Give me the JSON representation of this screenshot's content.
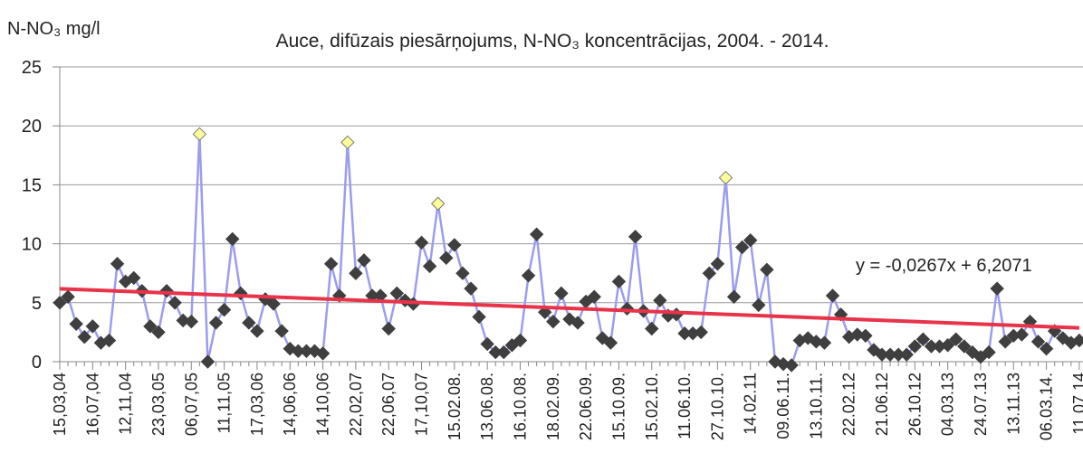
{
  "chart_data": {
    "type": "line",
    "title": "Auce, difūzais piesārņojums,  N-NO₃ koncentrācijas, 2004. - 2014.",
    "y_label": "N-NO₃ mg/l",
    "categories": [
      "15,03,04",
      null,
      null,
      null,
      "16,07,04",
      null,
      null,
      null,
      "12,11,04",
      null,
      null,
      null,
      "23,03,05",
      null,
      null,
      null,
      "06,07,05",
      null,
      null,
      null,
      "11,11,05",
      null,
      null,
      null,
      "17,03,06",
      null,
      null,
      null,
      "14,06,06",
      null,
      null,
      null,
      "14,10,06",
      null,
      null,
      null,
      "22,02,07",
      null,
      null,
      null,
      "22,06,07",
      null,
      null,
      null,
      "17,10,07",
      null,
      null,
      null,
      "15.02.08.",
      null,
      null,
      null,
      "13.06.08.",
      null,
      null,
      null,
      "16.10.08.",
      null,
      null,
      null,
      "18.02.09.",
      null,
      null,
      null,
      "22.06.09.",
      null,
      null,
      null,
      "15.10.09.",
      null,
      null,
      null,
      "15.02.10.",
      null,
      null,
      null,
      "11.06.10.",
      null,
      null,
      null,
      "27.10.10.",
      null,
      null,
      null,
      "14.02.11",
      null,
      null,
      null,
      "09.06.11.",
      null,
      null,
      null,
      "13.10.11.",
      null,
      null,
      null,
      "22.02.12",
      null,
      null,
      null,
      "21.06.12",
      null,
      null,
      null,
      "26.10.12",
      null,
      null,
      null,
      "04.03.13",
      null,
      null,
      null,
      "24.07.13",
      null,
      null,
      null,
      "13.11.13",
      null,
      null,
      null,
      "06.03.14.",
      null,
      null,
      null,
      "11.07.14"
    ],
    "series": [
      {
        "name": "N-NO3",
        "color": "#9c9cf0",
        "marker_color": "#3f3f3f",
        "values": [
          5.0,
          5.5,
          3.2,
          2.1,
          3.0,
          1.6,
          1.8,
          8.3,
          6.8,
          7.1,
          6.0,
          3.0,
          2.5,
          6.0,
          5.0,
          3.5,
          3.4,
          19.3,
          0.0,
          3.3,
          4.4,
          10.4,
          5.8,
          3.3,
          2.6,
          5.3,
          4.9,
          2.6,
          1.1,
          0.9,
          0.9,
          0.9,
          0.7,
          8.3,
          5.6,
          18.6,
          7.5,
          8.6,
          5.6,
          5.6,
          2.8,
          5.8,
          5.2,
          4.9,
          10.1,
          8.1,
          13.4,
          8.8,
          9.9,
          7.5,
          6.2,
          3.8,
          1.5,
          0.8,
          0.8,
          1.4,
          1.8,
          7.3,
          10.8,
          4.2,
          3.4,
          5.8,
          3.6,
          3.3,
          5.1,
          5.5,
          2.0,
          1.6,
          6.8,
          4.5,
          10.6,
          4.3,
          2.8,
          5.2,
          3.9,
          4.0,
          2.4,
          2.4,
          2.5,
          7.5,
          8.3,
          15.6,
          5.5,
          9.7,
          10.3,
          4.8,
          7.8,
          0.0,
          -0.2,
          -0.3,
          1.8,
          2.0,
          1.7,
          1.6,
          5.6,
          4.0,
          2.1,
          2.3,
          2.2,
          1.0,
          0.6,
          0.6,
          0.6,
          0.6,
          1.3,
          1.9,
          1.3,
          1.3,
          1.4,
          1.9,
          1.3,
          0.8,
          0.4,
          0.8,
          6.2,
          1.7,
          2.2,
          2.3,
          3.4,
          1.7,
          1.1,
          2.6,
          2.0,
          1.6,
          1.8
        ],
        "highlight_indices": [
          17,
          35,
          46,
          81
        ],
        "highlight_color": "#ffff99"
      }
    ],
    "trendline": {
      "slope": -0.0267,
      "intercept": 6.2071,
      "label": "y = -0,0267x + 6,2071",
      "color": "#e8334a"
    },
    "ylim": [
      0,
      25
    ],
    "yticks": [
      0,
      5,
      10,
      15,
      20,
      25
    ],
    "grid": true
  }
}
